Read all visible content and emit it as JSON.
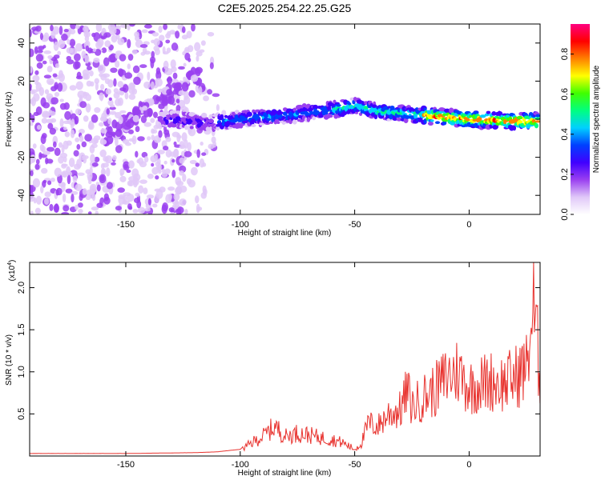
{
  "title": "C2E5.2025.254.22.25.G25",
  "chart_data": [
    {
      "type": "heatmap",
      "xlabel": "Height of straight line (km)",
      "ylabel": "Frequency (Hz)",
      "xlim": [
        -192,
        31
      ],
      "ylim": [
        -50,
        50
      ],
      "x_ticks": [
        -150,
        -100,
        -50,
        0
      ],
      "y_ticks": [
        -40,
        -20,
        0,
        20,
        40
      ],
      "colorbar": {
        "label": "Normalized spectral amplitude",
        "range": [
          0.0,
          0.95
        ],
        "ticks": [
          "0.0",
          "0.2",
          "0.4",
          "0.6",
          "0.8"
        ],
        "colors": [
          "#ffffff",
          "#e0c8f8",
          "#9a40f0",
          "#4000ff",
          "#0040ff",
          "#00d0ff",
          "#00ff80",
          "#40ff00",
          "#ffff00",
          "#ff8000",
          "#ff0000",
          "#ff0080"
        ]
      },
      "ridge": [
        {
          "x": -130,
          "y": 0
        },
        {
          "x": -115,
          "y": -2
        },
        {
          "x": -100,
          "y": 0
        },
        {
          "x": -80,
          "y": 2
        },
        {
          "x": -60,
          "y": 5
        },
        {
          "x": -50,
          "y": 7
        },
        {
          "x": -40,
          "y": 4
        },
        {
          "x": -20,
          "y": 2
        },
        {
          "x": 0,
          "y": 0
        },
        {
          "x": 20,
          "y": -1
        },
        {
          "x": 30,
          "y": -1
        }
      ]
    },
    {
      "type": "line",
      "xlabel": "Height of straight line (km)",
      "ylabel": "SNR (10 * v/v)",
      "y_scale_label": "(x10",
      "y_scale_exp": "4",
      "y_scale_close": ")",
      "xlim": [
        -192,
        31
      ],
      "ylim": [
        0,
        2.3
      ],
      "x_ticks": [
        -150,
        -100,
        -50,
        0
      ],
      "y_ticks": [
        "0.5",
        "1.0",
        "1.5",
        "2.0"
      ],
      "color": "#e8332f",
      "series": [
        {
          "x": [
            -192,
            -150,
            -120,
            -110,
            -100,
            -95,
            -90,
            -85,
            -80,
            -75,
            -70,
            -65,
            -60,
            -55,
            -50,
            -47,
            -44,
            -40,
            -35,
            -30,
            -27,
            -25,
            -20,
            -15,
            -10,
            -5,
            0,
            5,
            10,
            15,
            20,
            25,
            28,
            30,
            31
          ],
          "y": [
            0.03,
            0.03,
            0.04,
            0.05,
            0.08,
            0.2,
            0.3,
            0.45,
            0.3,
            0.35,
            0.32,
            0.28,
            0.25,
            0.2,
            0.1,
            0.2,
            0.5,
            0.45,
            0.65,
            0.7,
            1.0,
            0.75,
            0.9,
            1.0,
            1.2,
            1.3,
            1.05,
            1.1,
            1.15,
            1.1,
            1.2,
            1.35,
            2.25,
            1.6,
            1.0
          ]
        }
      ]
    }
  ]
}
